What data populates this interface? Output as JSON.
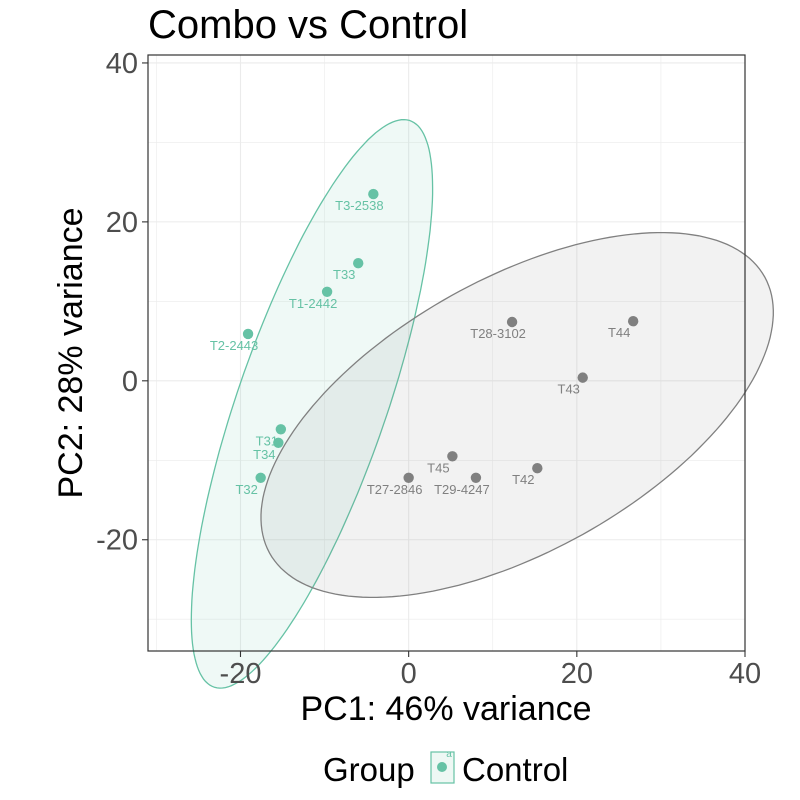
{
  "chart_data": {
    "type": "scatter",
    "title": "Combo vs Control",
    "xlabel": "PC1: 46% variance",
    "ylabel": "PC2: 28% variance",
    "xlim": [
      -31,
      40
    ],
    "ylim": [
      -34,
      41
    ],
    "xticks": [
      -20,
      0,
      20,
      40
    ],
    "xtick_labels": [
      "-20",
      "0",
      "20",
      "40"
    ],
    "yticks": [
      -20,
      0,
      20,
      40
    ],
    "ytick_labels": [
      "-20",
      "0",
      "20",
      "40"
    ],
    "grid": true,
    "legend_position": "bottom",
    "legend": {
      "title": "Group",
      "entries": [
        {
          "label": "Control",
          "color": "#66c2a5"
        }
      ]
    },
    "series": [
      {
        "color": "#66c2a5",
        "ellipse": {
          "cx": -11.5,
          "cy": -2.9,
          "rx": 37.5,
          "ry": 8.9,
          "angle_deg": 72
        },
        "points": [
          {
            "label": "T3-2538",
            "x": -4.2,
            "y": 23.5
          },
          {
            "label": "T33",
            "x": -6,
            "y": 14.8
          },
          {
            "label": "T1-2442",
            "x": -9.7,
            "y": 11.2
          },
          {
            "label": "T2-2443",
            "x": -19.1,
            "y": 5.9
          },
          {
            "label": "T31",
            "x": -15.2,
            "y": -6.1
          },
          {
            "label": "T34",
            "x": -15.5,
            "y": -7.8
          },
          {
            "label": "T32",
            "x": -17.6,
            "y": -12.2
          }
        ]
      },
      {
        "color": "#808080",
        "ellipse": {
          "cx": 12.9,
          "cy": -4.3,
          "rx": 34.2,
          "ry": 16.9,
          "angle_deg": 31.5
        },
        "points": [
          {
            "label": "T28-3102",
            "x": 12.3,
            "y": 7.4
          },
          {
            "label": "T44",
            "x": 26.7,
            "y": 7.5
          },
          {
            "label": "T43",
            "x": 20.7,
            "y": 0.4
          },
          {
            "label": "T45",
            "x": 5.2,
            "y": -9.5
          },
          {
            "label": "T42",
            "x": 15.3,
            "y": -11
          },
          {
            "label": "T27-2846",
            "x": 0,
            "y": -12.2
          },
          {
            "label": "T29-4247",
            "x": 8,
            "y": -12.2
          }
        ]
      }
    ]
  }
}
